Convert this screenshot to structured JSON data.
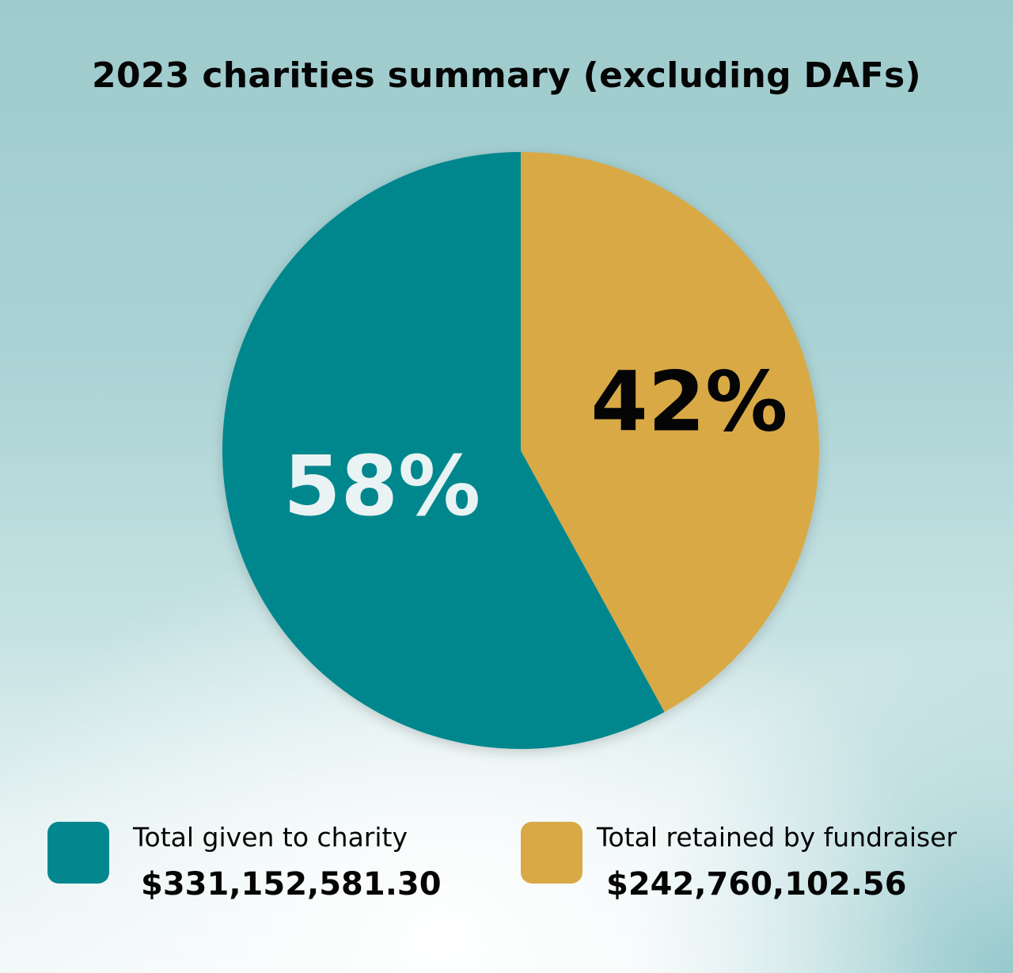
{
  "chart_data": {
    "type": "pie",
    "title": "2023 charities summary (excluding DAFs)",
    "slices": [
      {
        "name": "Total given to charity",
        "percent_label": "58%",
        "value": 58,
        "amount": "$331,152,581.30",
        "color": "#02878e",
        "label_color": "#e9f3f3"
      },
      {
        "name": "Total retained by fundraiser",
        "percent_label": "42%",
        "value": 42,
        "amount": "$242,760,102.56",
        "color": "#d9a945",
        "label_color": "#050505"
      }
    ],
    "legend_position": "bottom"
  }
}
